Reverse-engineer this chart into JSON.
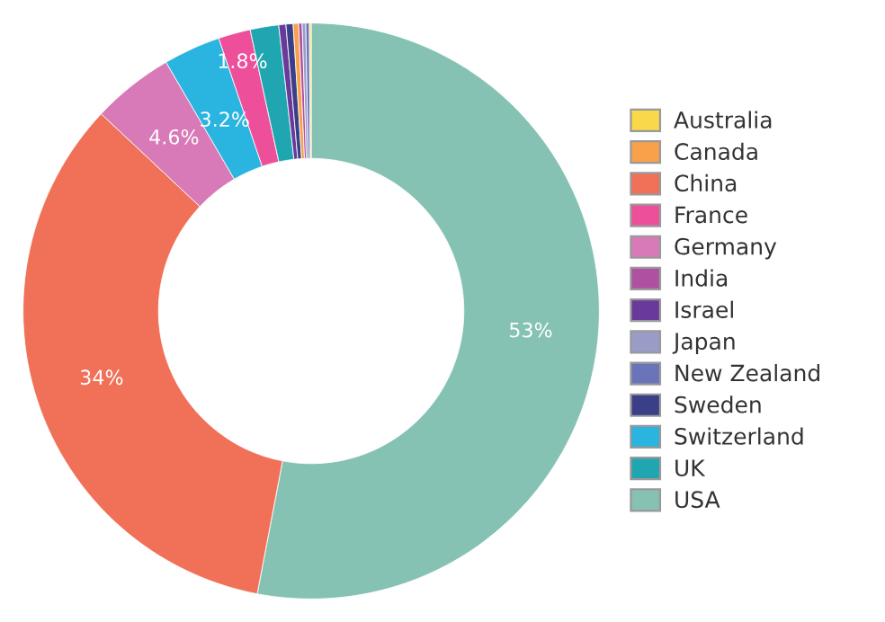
{
  "chart_data": {
    "type": "donut",
    "categories": [
      "Australia",
      "Canada",
      "China",
      "France",
      "Germany",
      "India",
      "Israel",
      "Japan",
      "New Zealand",
      "Sweden",
      "Switzerland",
      "UK",
      "USA"
    ],
    "values": [
      0.1,
      0.3,
      34,
      1.8,
      4.6,
      0.2,
      0.4,
      0.2,
      0.2,
      0.4,
      3.2,
      1.6,
      53
    ],
    "colors": [
      "#f9d949",
      "#f8a04a",
      "#f07058",
      "#ee4f9a",
      "#d97ab8",
      "#b050a0",
      "#6a3a9a",
      "#9a9cc8",
      "#6a74b8",
      "#3a3f88",
      "#2ab4e0",
      "#20a6b0",
      "#85c2b4"
    ],
    "value_labels": [
      null,
      null,
      "34%",
      "1.8%",
      "4.6%",
      null,
      null,
      null,
      null,
      null,
      "3.2%",
      null,
      "53%"
    ],
    "legend": "right"
  }
}
